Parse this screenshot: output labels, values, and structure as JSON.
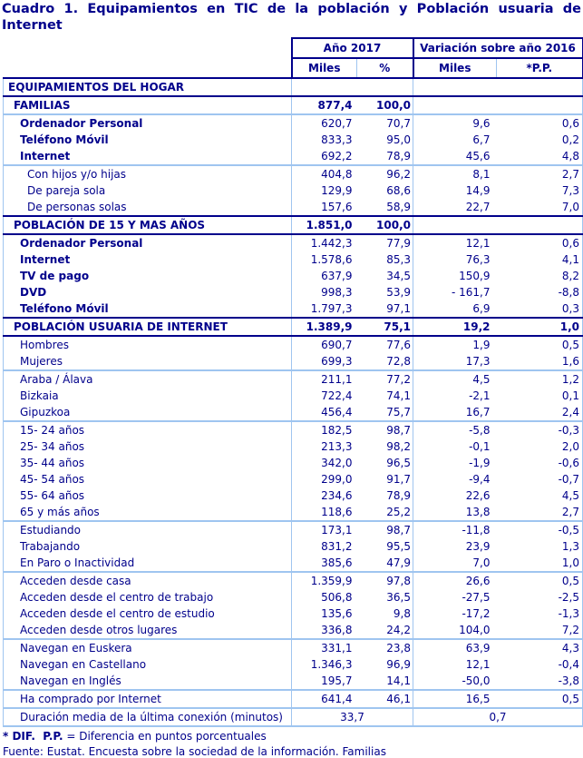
{
  "title": "Cuadro 1. Equipamientos en TIC de la población y Población usuaria de Internet",
  "colors": {
    "text_navy": "#00008B",
    "border_light_blue": "#9FC5F0"
  },
  "header": {
    "col_group_2017": "Año 2017",
    "col_group_var": "Variación sobre año 2016",
    "col_miles_2017": "Miles",
    "col_pct_2017": "%",
    "col_miles_var": "Miles",
    "col_pp_var": "*P.P."
  },
  "rows": [
    {
      "label": "EQUIPAMIENTOS DEL HOGAR",
      "miles": "",
      "pct": "",
      "var": "",
      "pp": "",
      "style": "section",
      "indent": 0,
      "sep": "none"
    },
    {
      "label": "FAMILIAS",
      "miles": "877,4",
      "pct": "100,0",
      "var": "",
      "pp": "",
      "style": "fam",
      "indent": 1,
      "sep": "light"
    },
    {
      "label": "Ordenador Personal",
      "miles": "620,7",
      "pct": "70,7",
      "var": "9,6",
      "pp": "0,6",
      "style": "bolditem",
      "indent": 2,
      "sep": "none"
    },
    {
      "label": "Teléfono Móvil",
      "miles": "833,3",
      "pct": "95,0",
      "var": "6,7",
      "pp": "0,2",
      "style": "bolditem",
      "indent": 2,
      "sep": "none"
    },
    {
      "label": "Internet",
      "miles": "692,2",
      "pct": "78,9",
      "var": "45,6",
      "pp": "4,8",
      "style": "bolditem",
      "indent": 2,
      "sep": "light"
    },
    {
      "label": "Con hijos y/o hijas",
      "miles": "404,8",
      "pct": "96,2",
      "var": "8,1",
      "pp": "2,7",
      "style": "item",
      "indent": 3,
      "sep": "none"
    },
    {
      "label": "De pareja sola",
      "miles": "129,9",
      "pct": "68,6",
      "var": "14,9",
      "pp": "7,3",
      "style": "item",
      "indent": 3,
      "sep": "none"
    },
    {
      "label": "De personas solas",
      "miles": "157,6",
      "pct": "58,9",
      "var": "22,7",
      "pp": "7,0",
      "style": "item",
      "indent": 3,
      "sep": "none"
    },
    {
      "label": "POBLACIÓN DE 15 Y MAS AÑOS",
      "miles": "1.851,0",
      "pct": "100,0",
      "var": "",
      "pp": "",
      "style": "section",
      "indent": 1,
      "sep": "none"
    },
    {
      "label": "Ordenador Personal",
      "miles": "1.442,3",
      "pct": "77,9",
      "var": "12,1",
      "pp": "0,6",
      "style": "bolditem",
      "indent": 2,
      "sep": "none"
    },
    {
      "label": "Internet",
      "miles": "1.578,6",
      "pct": "85,3",
      "var": "76,3",
      "pp": "4,1",
      "style": "bolditem",
      "indent": 2,
      "sep": "none"
    },
    {
      "label": "TV de pago",
      "miles": "637,9",
      "pct": "34,5",
      "var": "150,9",
      "pp": "8,2",
      "style": "bolditem",
      "indent": 2,
      "sep": "none"
    },
    {
      "label": "DVD",
      "miles": "998,3",
      "pct": "53,9",
      "var": "- 161,7",
      "pp": "-8,8",
      "style": "bolditem",
      "indent": 2,
      "sep": "none"
    },
    {
      "label": "Teléfono Móvil",
      "miles": "1.797,3",
      "pct": "97,1",
      "var": "6,9",
      "pp": "0,3",
      "style": "bolditem",
      "indent": 2,
      "sep": "none"
    },
    {
      "label": "POBLACIÓN USUARIA DE INTERNET",
      "miles": "1.389,9",
      "pct": "75,1",
      "var": "19,2",
      "pp": "1,0",
      "style": "section",
      "indent": 1,
      "sep": "none"
    },
    {
      "label": "Hombres",
      "miles": "690,7",
      "pct": "77,6",
      "var": "1,9",
      "pp": "0,5",
      "style": "item",
      "indent": 2,
      "sep": "none"
    },
    {
      "label": "Mujeres",
      "miles": "699,3",
      "pct": "72,8",
      "var": "17,3",
      "pp": "1,6",
      "style": "item",
      "indent": 2,
      "sep": "light"
    },
    {
      "label": "Araba / Álava",
      "miles": "211,1",
      "pct": "77,2",
      "var": "4,5",
      "pp": "1,2",
      "style": "item",
      "indent": 2,
      "sep": "none"
    },
    {
      "label": "Bizkaia",
      "miles": "722,4",
      "pct": "74,1",
      "var": "-2,1",
      "pp": "0,1",
      "style": "item",
      "indent": 2,
      "sep": "none"
    },
    {
      "label": "Gipuzkoa",
      "miles": "456,4",
      "pct": "75,7",
      "var": "16,7",
      "pp": "2,4",
      "style": "item",
      "indent": 2,
      "sep": "light"
    },
    {
      "label": "15- 24 años",
      "miles": "182,5",
      "pct": "98,7",
      "var": "-5,8",
      "pp": "-0,3",
      "style": "item",
      "indent": 2,
      "sep": "none"
    },
    {
      "label": "25- 34 años",
      "miles": "213,3",
      "pct": "98,2",
      "var": "-0,1",
      "pp": "2,0",
      "style": "item",
      "indent": 2,
      "sep": "none"
    },
    {
      "label": "35- 44 años",
      "miles": "342,0",
      "pct": "96,5",
      "var": "-1,9",
      "pp": "-0,6",
      "style": "item",
      "indent": 2,
      "sep": "none"
    },
    {
      "label": "45- 54 años",
      "miles": "299,0",
      "pct": "91,7",
      "var": "-9,4",
      "pp": "-0,7",
      "style": "item",
      "indent": 2,
      "sep": "none"
    },
    {
      "label": "55- 64 años",
      "miles": "234,6",
      "pct": "78,9",
      "var": "22,6",
      "pp": "4,5",
      "style": "item",
      "indent": 2,
      "sep": "none"
    },
    {
      "label": "65 y más años",
      "miles": "118,6",
      "pct": "25,2",
      "var": "13,8",
      "pp": "2,7",
      "style": "item",
      "indent": 2,
      "sep": "light"
    },
    {
      "label": "Estudiando",
      "miles": "173,1",
      "pct": "98,7",
      "var": "-11,8",
      "pp": "-0,5",
      "style": "item",
      "indent": 2,
      "sep": "none"
    },
    {
      "label": "Trabajando",
      "miles": "831,2",
      "pct": "95,5",
      "var": "23,9",
      "pp": "1,3",
      "style": "item",
      "indent": 2,
      "sep": "none"
    },
    {
      "label": "En Paro o Inactividad",
      "miles": "385,6",
      "pct": "47,9",
      "var": "7,0",
      "pp": "1,0",
      "style": "item",
      "indent": 2,
      "sep": "light"
    },
    {
      "label": "Acceden desde casa",
      "miles": "1.359,9",
      "pct": "97,8",
      "var": "26,6",
      "pp": "0,5",
      "style": "item",
      "indent": 2,
      "sep": "none"
    },
    {
      "label": "Acceden desde el centro de trabajo",
      "miles": "506,8",
      "pct": "36,5",
      "var": "-27,5",
      "pp": "-2,5",
      "style": "item",
      "indent": 2,
      "sep": "none"
    },
    {
      "label": "Acceden desde el centro de estudio",
      "miles": "135,6",
      "pct": "9,8",
      "var": "-17,2",
      "pp": "-1,3",
      "style": "item",
      "indent": 2,
      "sep": "none"
    },
    {
      "label": "Acceden desde otros lugares",
      "miles": "336,8",
      "pct": "24,2",
      "var": "104,0",
      "pp": "7,2",
      "style": "item",
      "indent": 2,
      "sep": "light"
    },
    {
      "label": "Navegan en Euskera",
      "miles": "331,1",
      "pct": "23,8",
      "var": "63,9",
      "pp": "4,3",
      "style": "item",
      "indent": 2,
      "sep": "none"
    },
    {
      "label": "Navegan en Castellano",
      "miles": "1.346,3",
      "pct": "96,9",
      "var": "12,1",
      "pp": "-0,4",
      "style": "item",
      "indent": 2,
      "sep": "none"
    },
    {
      "label": "Navegan en Inglés",
      "miles": "195,7",
      "pct": "14,1",
      "var": "-50,0",
      "pp": "-3,8",
      "style": "item",
      "indent": 2,
      "sep": "light"
    },
    {
      "label": "Ha comprado por Internet",
      "miles": "641,4",
      "pct": "46,1",
      "var": "16,5",
      "pp": "0,5",
      "style": "item",
      "indent": 2,
      "sep": "light"
    },
    {
      "label": "Duración media de la última conexión (minutos)",
      "miles": "33,7",
      "var": "0,7",
      "style": "item",
      "indent": 2,
      "sep": "light",
      "span": true
    }
  ],
  "footnotes": {
    "dif_bold": "* DIF.  P.P.",
    "dif_rest": " = Diferencia en puntos porcentuales",
    "source": "Fuente: Eustat. Encuesta sobre la sociedad de la información. Familias"
  }
}
